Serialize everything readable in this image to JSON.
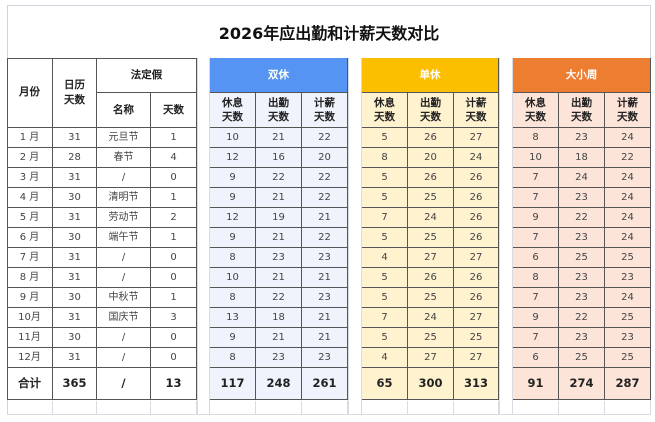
{
  "title": "2026年应出勤和计薪天数对比",
  "colors": {
    "shuangxiu_header": "#5594f2",
    "shuangxiu_fill": "#eef3fc",
    "danxiu_header": "#fcbf00",
    "danxiu_fill": "#fff2cf",
    "daxiaozhou_header": "#ed7d31",
    "daxiaozhou_fill": "#fce4d8"
  },
  "headers": {
    "month": "月份",
    "calendar_days": "日历天数",
    "holiday": "法定假",
    "holiday_name": "名称",
    "holiday_days": "天数",
    "rest_days": "休息天数",
    "work_days": "出勤天数",
    "paid_days": "计薪天数"
  },
  "groups": [
    {
      "label": "双休"
    },
    {
      "label": "单休"
    },
    {
      "label": "大小周"
    }
  ],
  "rows": [
    {
      "month": "1 月",
      "cal": "31",
      "hname": "元旦节",
      "hdays": "1",
      "g": [
        [
          "10",
          "21",
          "22"
        ],
        [
          "5",
          "26",
          "27"
        ],
        [
          "8",
          "23",
          "24"
        ]
      ]
    },
    {
      "month": "2 月",
      "cal": "28",
      "hname": "春节",
      "hdays": "4",
      "g": [
        [
          "12",
          "16",
          "20"
        ],
        [
          "8",
          "20",
          "24"
        ],
        [
          "10",
          "18",
          "22"
        ]
      ]
    },
    {
      "month": "3 月",
      "cal": "31",
      "hname": "/",
      "hdays": "0",
      "g": [
        [
          "9",
          "22",
          "22"
        ],
        [
          "5",
          "26",
          "26"
        ],
        [
          "7",
          "24",
          "24"
        ]
      ]
    },
    {
      "month": "4 月",
      "cal": "30",
      "hname": "清明节",
      "hdays": "1",
      "g": [
        [
          "9",
          "21",
          "22"
        ],
        [
          "5",
          "25",
          "26"
        ],
        [
          "7",
          "23",
          "24"
        ]
      ]
    },
    {
      "month": "5 月",
      "cal": "31",
      "hname": "劳动节",
      "hdays": "2",
      "g": [
        [
          "12",
          "19",
          "21"
        ],
        [
          "7",
          "24",
          "26"
        ],
        [
          "9",
          "22",
          "24"
        ]
      ]
    },
    {
      "month": "6 月",
      "cal": "30",
      "hname": "端午节",
      "hdays": "1",
      "g": [
        [
          "9",
          "21",
          "22"
        ],
        [
          "5",
          "25",
          "26"
        ],
        [
          "7",
          "23",
          "24"
        ]
      ]
    },
    {
      "month": "7 月",
      "cal": "31",
      "hname": "/",
      "hdays": "0",
      "g": [
        [
          "8",
          "23",
          "23"
        ],
        [
          "4",
          "27",
          "27"
        ],
        [
          "6",
          "25",
          "25"
        ]
      ]
    },
    {
      "month": "8 月",
      "cal": "31",
      "hname": "/",
      "hdays": "0",
      "g": [
        [
          "10",
          "21",
          "21"
        ],
        [
          "5",
          "26",
          "26"
        ],
        [
          "8",
          "23",
          "23"
        ]
      ]
    },
    {
      "month": "9 月",
      "cal": "30",
      "hname": "中秋节",
      "hdays": "1",
      "g": [
        [
          "8",
          "22",
          "23"
        ],
        [
          "5",
          "25",
          "26"
        ],
        [
          "7",
          "23",
          "24"
        ]
      ]
    },
    {
      "month": "10月",
      "cal": "31",
      "hname": "国庆节",
      "hdays": "3",
      "g": [
        [
          "13",
          "18",
          "21"
        ],
        [
          "7",
          "24",
          "27"
        ],
        [
          "9",
          "22",
          "25"
        ]
      ]
    },
    {
      "month": "11月",
      "cal": "30",
      "hname": "/",
      "hdays": "0",
      "g": [
        [
          "9",
          "21",
          "21"
        ],
        [
          "5",
          "25",
          "25"
        ],
        [
          "7",
          "23",
          "23"
        ]
      ]
    },
    {
      "month": "12月",
      "cal": "31",
      "hname": "/",
      "hdays": "0",
      "g": [
        [
          "8",
          "23",
          "23"
        ],
        [
          "4",
          "27",
          "27"
        ],
        [
          "6",
          "25",
          "25"
        ]
      ]
    }
  ],
  "total": {
    "label": "合计",
    "cal": "365",
    "hname": "/",
    "hdays": "13",
    "g": [
      [
        "117",
        "248",
        "261"
      ],
      [
        "65",
        "300",
        "313"
      ],
      [
        "91",
        "274",
        "287"
      ]
    ]
  }
}
